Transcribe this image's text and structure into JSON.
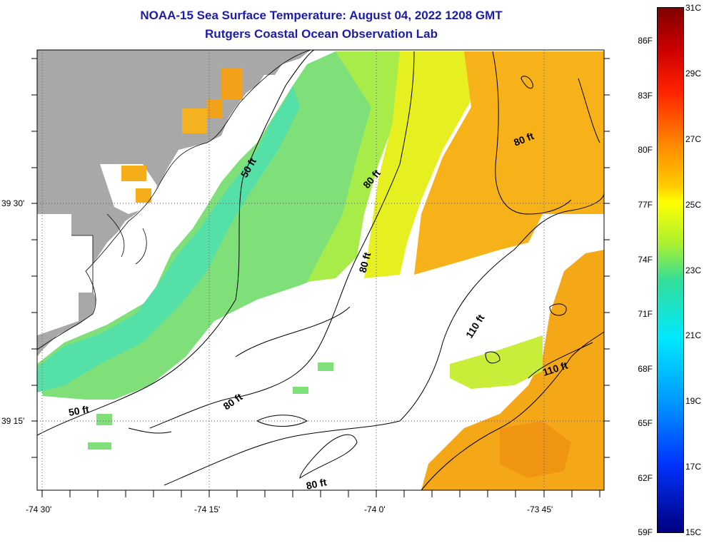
{
  "title": {
    "line1": "NOAA-15 Sea Surface Temperature:  August 04, 2022 1208 GMT",
    "line2": "Rutgers Coastal Ocean Observation Lab"
  },
  "map": {
    "lat_labels": [
      "39 30'",
      "39 15'"
    ],
    "lon_labels": [
      "-74 30'",
      "-74 15'",
      "-74 0'",
      "-73 45'"
    ],
    "depth_contours": [
      "50 ft",
      "50 ft",
      "80 ft",
      "80 ft",
      "80 ft",
      "80 ft",
      "80 ft",
      "110 ft",
      "110 ft"
    ],
    "colors": {
      "land": "#a8a8a8",
      "no_data": "#ffffff"
    }
  },
  "colorbar": {
    "fahrenheit": [
      "86F",
      "83F",
      "80F",
      "77F",
      "74F",
      "71F",
      "68F",
      "65F",
      "62F",
      "59F"
    ],
    "celsius": [
      "31C",
      "29C",
      "27C",
      "25C",
      "23C",
      "21C",
      "19C",
      "17C",
      "15C"
    ],
    "min_c": 15,
    "max_c": 31
  }
}
